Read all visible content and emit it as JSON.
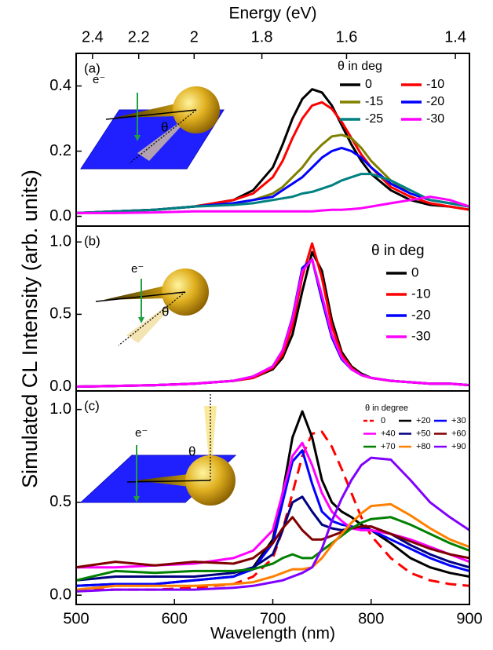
{
  "chart_data": [
    {
      "type": "line",
      "panel_label": "(a)",
      "x2label": "Energy (eV)",
      "x2ticks": [
        2.4,
        2.2,
        2,
        1.8,
        1.6,
        1.4
      ],
      "legend_title": "θ in deg",
      "inset_labels": [
        "e⁻",
        "θ"
      ],
      "xlim": [
        500,
        900
      ],
      "ylim": [
        -0.03,
        0.5
      ],
      "yticks": [
        {
          "value": 0,
          "label": "0.0"
        },
        0.2,
        0.4
      ],
      "x": [
        500,
        540,
        580,
        620,
        660,
        680,
        700,
        710,
        720,
        730,
        740,
        750,
        760,
        770,
        780,
        790,
        800,
        820,
        840,
        860,
        880,
        900
      ],
      "series": [
        {
          "name": "0",
          "color": "#000000",
          "values": [
            0.01,
            0.015,
            0.02,
            0.03,
            0.05,
            0.08,
            0.15,
            0.22,
            0.3,
            0.36,
            0.39,
            0.38,
            0.34,
            0.28,
            0.22,
            0.17,
            0.13,
            0.08,
            0.05,
            0.035,
            0.03,
            0.02
          ]
        },
        {
          "name": "-10",
          "color": "#ff0000",
          "values": [
            0.01,
            0.015,
            0.02,
            0.03,
            0.05,
            0.07,
            0.12,
            0.17,
            0.24,
            0.3,
            0.34,
            0.35,
            0.33,
            0.29,
            0.24,
            0.19,
            0.15,
            0.09,
            0.06,
            0.04,
            0.03,
            0.02
          ]
        },
        {
          "name": "-15",
          "color": "#808000",
          "values": [
            0.01,
            0.015,
            0.02,
            0.03,
            0.04,
            0.05,
            0.07,
            0.09,
            0.12,
            0.15,
            0.19,
            0.22,
            0.245,
            0.25,
            0.24,
            0.21,
            0.17,
            0.11,
            0.07,
            0.05,
            0.04,
            0.03
          ]
        },
        {
          "name": "-20",
          "color": "#0000ff",
          "values": [
            0.01,
            0.015,
            0.02,
            0.03,
            0.04,
            0.05,
            0.06,
            0.08,
            0.1,
            0.12,
            0.15,
            0.18,
            0.2,
            0.21,
            0.2,
            0.18,
            0.15,
            0.1,
            0.07,
            0.05,
            0.04,
            0.03
          ]
        },
        {
          "name": "-25",
          "color": "#008080",
          "values": [
            0.01,
            0.015,
            0.02,
            0.03,
            0.035,
            0.04,
            0.05,
            0.055,
            0.06,
            0.07,
            0.075,
            0.085,
            0.095,
            0.11,
            0.12,
            0.13,
            0.13,
            0.11,
            0.08,
            0.05,
            0.04,
            0.03
          ]
        },
        {
          "name": "-30",
          "color": "#ff00ff",
          "values": [
            0.01,
            0.01,
            0.012,
            0.015,
            0.015,
            0.015,
            0.015,
            0.015,
            0.015,
            0.015,
            0.015,
            0.018,
            0.02,
            0.02,
            0.022,
            0.025,
            0.03,
            0.04,
            0.05,
            0.06,
            0.05,
            0.03
          ]
        }
      ]
    },
    {
      "type": "line",
      "panel_label": "(b)",
      "ylabel": "Simulated CL Intensity (arb. units)",
      "legend_title": "θ in deg",
      "inset_labels": [
        "e⁻",
        "θ"
      ],
      "xlim": [
        500,
        900
      ],
      "ylim": [
        -0.03,
        1.11
      ],
      "yticks": [
        {
          "value": 0,
          "label": "0.0"
        },
        0.5,
        {
          "value": 1,
          "label": "1.0"
        }
      ],
      "x": [
        500,
        540,
        580,
        620,
        660,
        680,
        700,
        710,
        720,
        730,
        740,
        750,
        760,
        770,
        780,
        790,
        800,
        820,
        840,
        860,
        880,
        900
      ],
      "series": [
        {
          "name": "0",
          "color": "#000000",
          "values": [
            0.0,
            0.005,
            0.01,
            0.02,
            0.04,
            0.06,
            0.12,
            0.2,
            0.36,
            0.66,
            0.93,
            0.8,
            0.46,
            0.24,
            0.14,
            0.09,
            0.06,
            0.04,
            0.03,
            0.02,
            0.02,
            0.01
          ]
        },
        {
          "name": "-10",
          "color": "#ff0000",
          "values": [
            0.0,
            0.005,
            0.01,
            0.02,
            0.04,
            0.06,
            0.13,
            0.22,
            0.42,
            0.76,
            0.99,
            0.75,
            0.42,
            0.22,
            0.13,
            0.08,
            0.06,
            0.04,
            0.03,
            0.02,
            0.02,
            0.01
          ]
        },
        {
          "name": "-20",
          "color": "#0000ff",
          "values": [
            0.0,
            0.005,
            0.01,
            0.02,
            0.04,
            0.07,
            0.14,
            0.25,
            0.48,
            0.82,
            0.88,
            0.6,
            0.34,
            0.19,
            0.12,
            0.08,
            0.06,
            0.04,
            0.03,
            0.02,
            0.02,
            0.01
          ]
        },
        {
          "name": "-30",
          "color": "#ff00ff",
          "values": [
            0.0,
            0.005,
            0.01,
            0.02,
            0.04,
            0.07,
            0.14,
            0.25,
            0.47,
            0.8,
            0.88,
            0.63,
            0.36,
            0.2,
            0.12,
            0.08,
            0.06,
            0.04,
            0.03,
            0.02,
            0.02,
            0.01
          ]
        }
      ]
    },
    {
      "type": "line",
      "panel_label": "(c)",
      "xlabel": "Wavelength (nm)",
      "legend_title": "θ in degree",
      "inset_labels": [
        "e⁻",
        "θ"
      ],
      "xlim": [
        500,
        900
      ],
      "xticks": [
        500,
        600,
        700,
        800,
        900
      ],
      "ylim": [
        -0.05,
        1.1
      ],
      "yticks": [
        {
          "value": 0,
          "label": "0.0"
        },
        0.5,
        {
          "value": 1,
          "label": "1.0"
        }
      ],
      "x": [
        500,
        540,
        580,
        620,
        660,
        680,
        700,
        710,
        720,
        730,
        740,
        750,
        760,
        770,
        780,
        790,
        800,
        820,
        840,
        860,
        880,
        900
      ],
      "series": [
        {
          "name": "0",
          "color": "#ff0000",
          "dashed": true,
          "values": [
            0.03,
            0.03,
            0.03,
            0.04,
            0.06,
            0.1,
            0.2,
            0.35,
            0.55,
            0.75,
            0.87,
            0.88,
            0.8,
            0.68,
            0.55,
            0.42,
            0.32,
            0.2,
            0.12,
            0.08,
            0.06,
            0.05
          ]
        },
        {
          "name": "+20",
          "color": "#000000",
          "values": [
            0.05,
            0.06,
            0.06,
            0.08,
            0.1,
            0.15,
            0.3,
            0.55,
            0.85,
            0.99,
            0.85,
            0.62,
            0.5,
            0.45,
            0.42,
            0.38,
            0.35,
            0.28,
            0.2,
            0.15,
            0.12,
            0.1
          ]
        },
        {
          "name": "+30",
          "color": "#0000ff",
          "values": [
            0.05,
            0.06,
            0.06,
            0.08,
            0.1,
            0.14,
            0.28,
            0.5,
            0.72,
            0.78,
            0.6,
            0.45,
            0.4,
            0.38,
            0.37,
            0.36,
            0.35,
            0.3,
            0.25,
            0.2,
            0.16,
            0.13
          ]
        },
        {
          "name": "+40",
          "color": "#ff00ff",
          "values": [
            0.15,
            0.15,
            0.16,
            0.17,
            0.2,
            0.24,
            0.35,
            0.55,
            0.75,
            0.82,
            0.7,
            0.55,
            0.45,
            0.4,
            0.36,
            0.35,
            0.35,
            0.33,
            0.3,
            0.26,
            0.22,
            0.18
          ]
        },
        {
          "name": "+50",
          "color": "#000080",
          "values": [
            0.08,
            0.1,
            0.1,
            0.1,
            0.12,
            0.15,
            0.22,
            0.35,
            0.5,
            0.53,
            0.45,
            0.38,
            0.36,
            0.35,
            0.36,
            0.37,
            0.37,
            0.33,
            0.27,
            0.22,
            0.18,
            0.15
          ]
        },
        {
          "name": "+60",
          "color": "#800000",
          "values": [
            0.15,
            0.18,
            0.16,
            0.18,
            0.17,
            0.2,
            0.28,
            0.36,
            0.42,
            0.35,
            0.3,
            0.3,
            0.32,
            0.34,
            0.36,
            0.37,
            0.37,
            0.33,
            0.29,
            0.25,
            0.22,
            0.2
          ]
        },
        {
          "name": "+70",
          "color": "#008000",
          "values": [
            0.08,
            0.13,
            0.12,
            0.13,
            0.13,
            0.14,
            0.17,
            0.2,
            0.22,
            0.2,
            0.2,
            0.24,
            0.28,
            0.32,
            0.36,
            0.39,
            0.41,
            0.42,
            0.38,
            0.33,
            0.28,
            0.24
          ]
        },
        {
          "name": "+80",
          "color": "#ff8000",
          "values": [
            0.03,
            0.05,
            0.05,
            0.05,
            0.06,
            0.07,
            0.1,
            0.12,
            0.14,
            0.14,
            0.15,
            0.2,
            0.27,
            0.33,
            0.39,
            0.44,
            0.48,
            0.49,
            0.43,
            0.36,
            0.3,
            0.26
          ]
        },
        {
          "name": "+90",
          "color": "#8000ff",
          "values": [
            0.02,
            0.03,
            0.03,
            0.03,
            0.04,
            0.05,
            0.07,
            0.08,
            0.1,
            0.12,
            0.15,
            0.25,
            0.4,
            0.52,
            0.62,
            0.7,
            0.74,
            0.73,
            0.62,
            0.5,
            0.42,
            0.35
          ]
        }
      ]
    }
  ]
}
